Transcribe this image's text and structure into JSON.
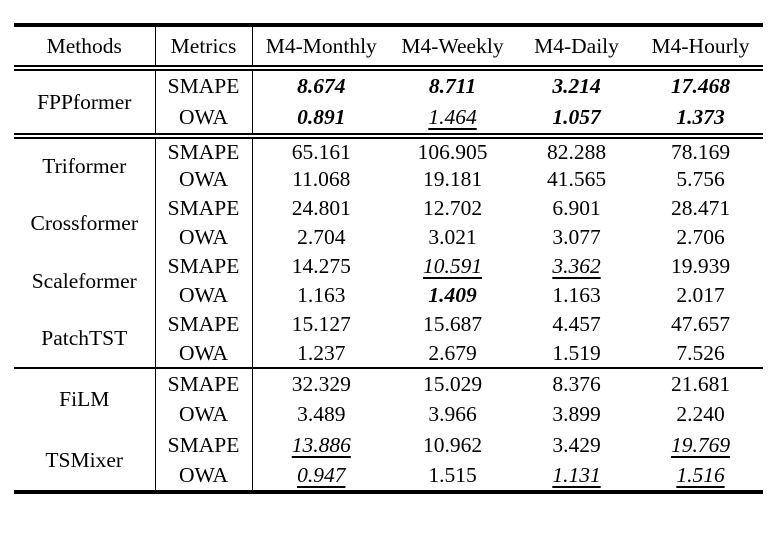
{
  "page": {
    "background": "#ffffff",
    "text_color": "#000000"
  },
  "table": {
    "header": {
      "methods_label": "Methods",
      "metrics_label": "Metrics",
      "datasets": [
        "M4-Monthly",
        "M4-Weekly",
        "M4-Daily",
        "M4-Hourly"
      ]
    },
    "emphasis": {
      "best": "bold-italic",
      "second": "italic-underline"
    },
    "sections": [
      {
        "methods": [
          {
            "name": "FPPformer",
            "rows": [
              {
                "metric": "SMAPE",
                "values": [
                  "8.674",
                  "8.711",
                  "3.214",
                  "17.468"
                ],
                "styles": [
                  "best",
                  "best",
                  "best",
                  "best"
                ]
              },
              {
                "metric": "OWA",
                "values": [
                  "0.891",
                  "1.464",
                  "1.057",
                  "1.373"
                ],
                "styles": [
                  "best",
                  "second",
                  "best",
                  "best"
                ]
              }
            ]
          }
        ]
      },
      {
        "methods": [
          {
            "name": "Triformer",
            "rows": [
              {
                "metric": "SMAPE",
                "values": [
                  "65.161",
                  "106.905",
                  "82.288",
                  "78.169"
                ],
                "styles": [
                  "",
                  "",
                  "",
                  ""
                ]
              },
              {
                "metric": "OWA",
                "values": [
                  "11.068",
                  "19.181",
                  "41.565",
                  "5.756"
                ],
                "styles": [
                  "",
                  "",
                  "",
                  ""
                ]
              }
            ]
          },
          {
            "name": "Crossformer",
            "rows": [
              {
                "metric": "SMAPE",
                "values": [
                  "24.801",
                  "12.702",
                  "6.901",
                  "28.471"
                ],
                "styles": [
                  "",
                  "",
                  "",
                  ""
                ]
              },
              {
                "metric": "OWA",
                "values": [
                  "2.704",
                  "3.021",
                  "3.077",
                  "2.706"
                ],
                "styles": [
                  "",
                  "",
                  "",
                  ""
                ]
              }
            ]
          },
          {
            "name": "Scaleformer",
            "rows": [
              {
                "metric": "SMAPE",
                "values": [
                  "14.275",
                  "10.591",
                  "3.362",
                  "19.939"
                ],
                "styles": [
                  "",
                  "second",
                  "second",
                  ""
                ]
              },
              {
                "metric": "OWA",
                "values": [
                  "1.163",
                  "1.409",
                  "1.163",
                  "2.017"
                ],
                "styles": [
                  "",
                  "best",
                  "",
                  ""
                ]
              }
            ]
          },
          {
            "name": "PatchTST",
            "rows": [
              {
                "metric": "SMAPE",
                "values": [
                  "15.127",
                  "15.687",
                  "4.457",
                  "47.657"
                ],
                "styles": [
                  "",
                  "",
                  "",
                  ""
                ]
              },
              {
                "metric": "OWA",
                "values": [
                  "1.237",
                  "2.679",
                  "1.519",
                  "7.526"
                ],
                "styles": [
                  "",
                  "",
                  "",
                  ""
                ]
              }
            ]
          }
        ]
      },
      {
        "methods": [
          {
            "name": "FiLM",
            "rows": [
              {
                "metric": "SMAPE",
                "values": [
                  "32.329",
                  "15.029",
                  "8.376",
                  "21.681"
                ],
                "styles": [
                  "",
                  "",
                  "",
                  ""
                ]
              },
              {
                "metric": "OWA",
                "values": [
                  "3.489",
                  "3.966",
                  "3.899",
                  "2.240"
                ],
                "styles": [
                  "",
                  "",
                  "",
                  ""
                ]
              }
            ]
          },
          {
            "name": "TSMixer",
            "rows": [
              {
                "metric": "SMAPE",
                "values": [
                  "13.886",
                  "10.962",
                  "3.429",
                  "19.769"
                ],
                "styles": [
                  "second",
                  "",
                  "",
                  "second"
                ]
              },
              {
                "metric": "OWA",
                "values": [
                  "0.947",
                  "1.515",
                  "1.131",
                  "1.516"
                ],
                "styles": [
                  "second",
                  "",
                  "second",
                  "second"
                ]
              }
            ]
          }
        ]
      }
    ]
  }
}
